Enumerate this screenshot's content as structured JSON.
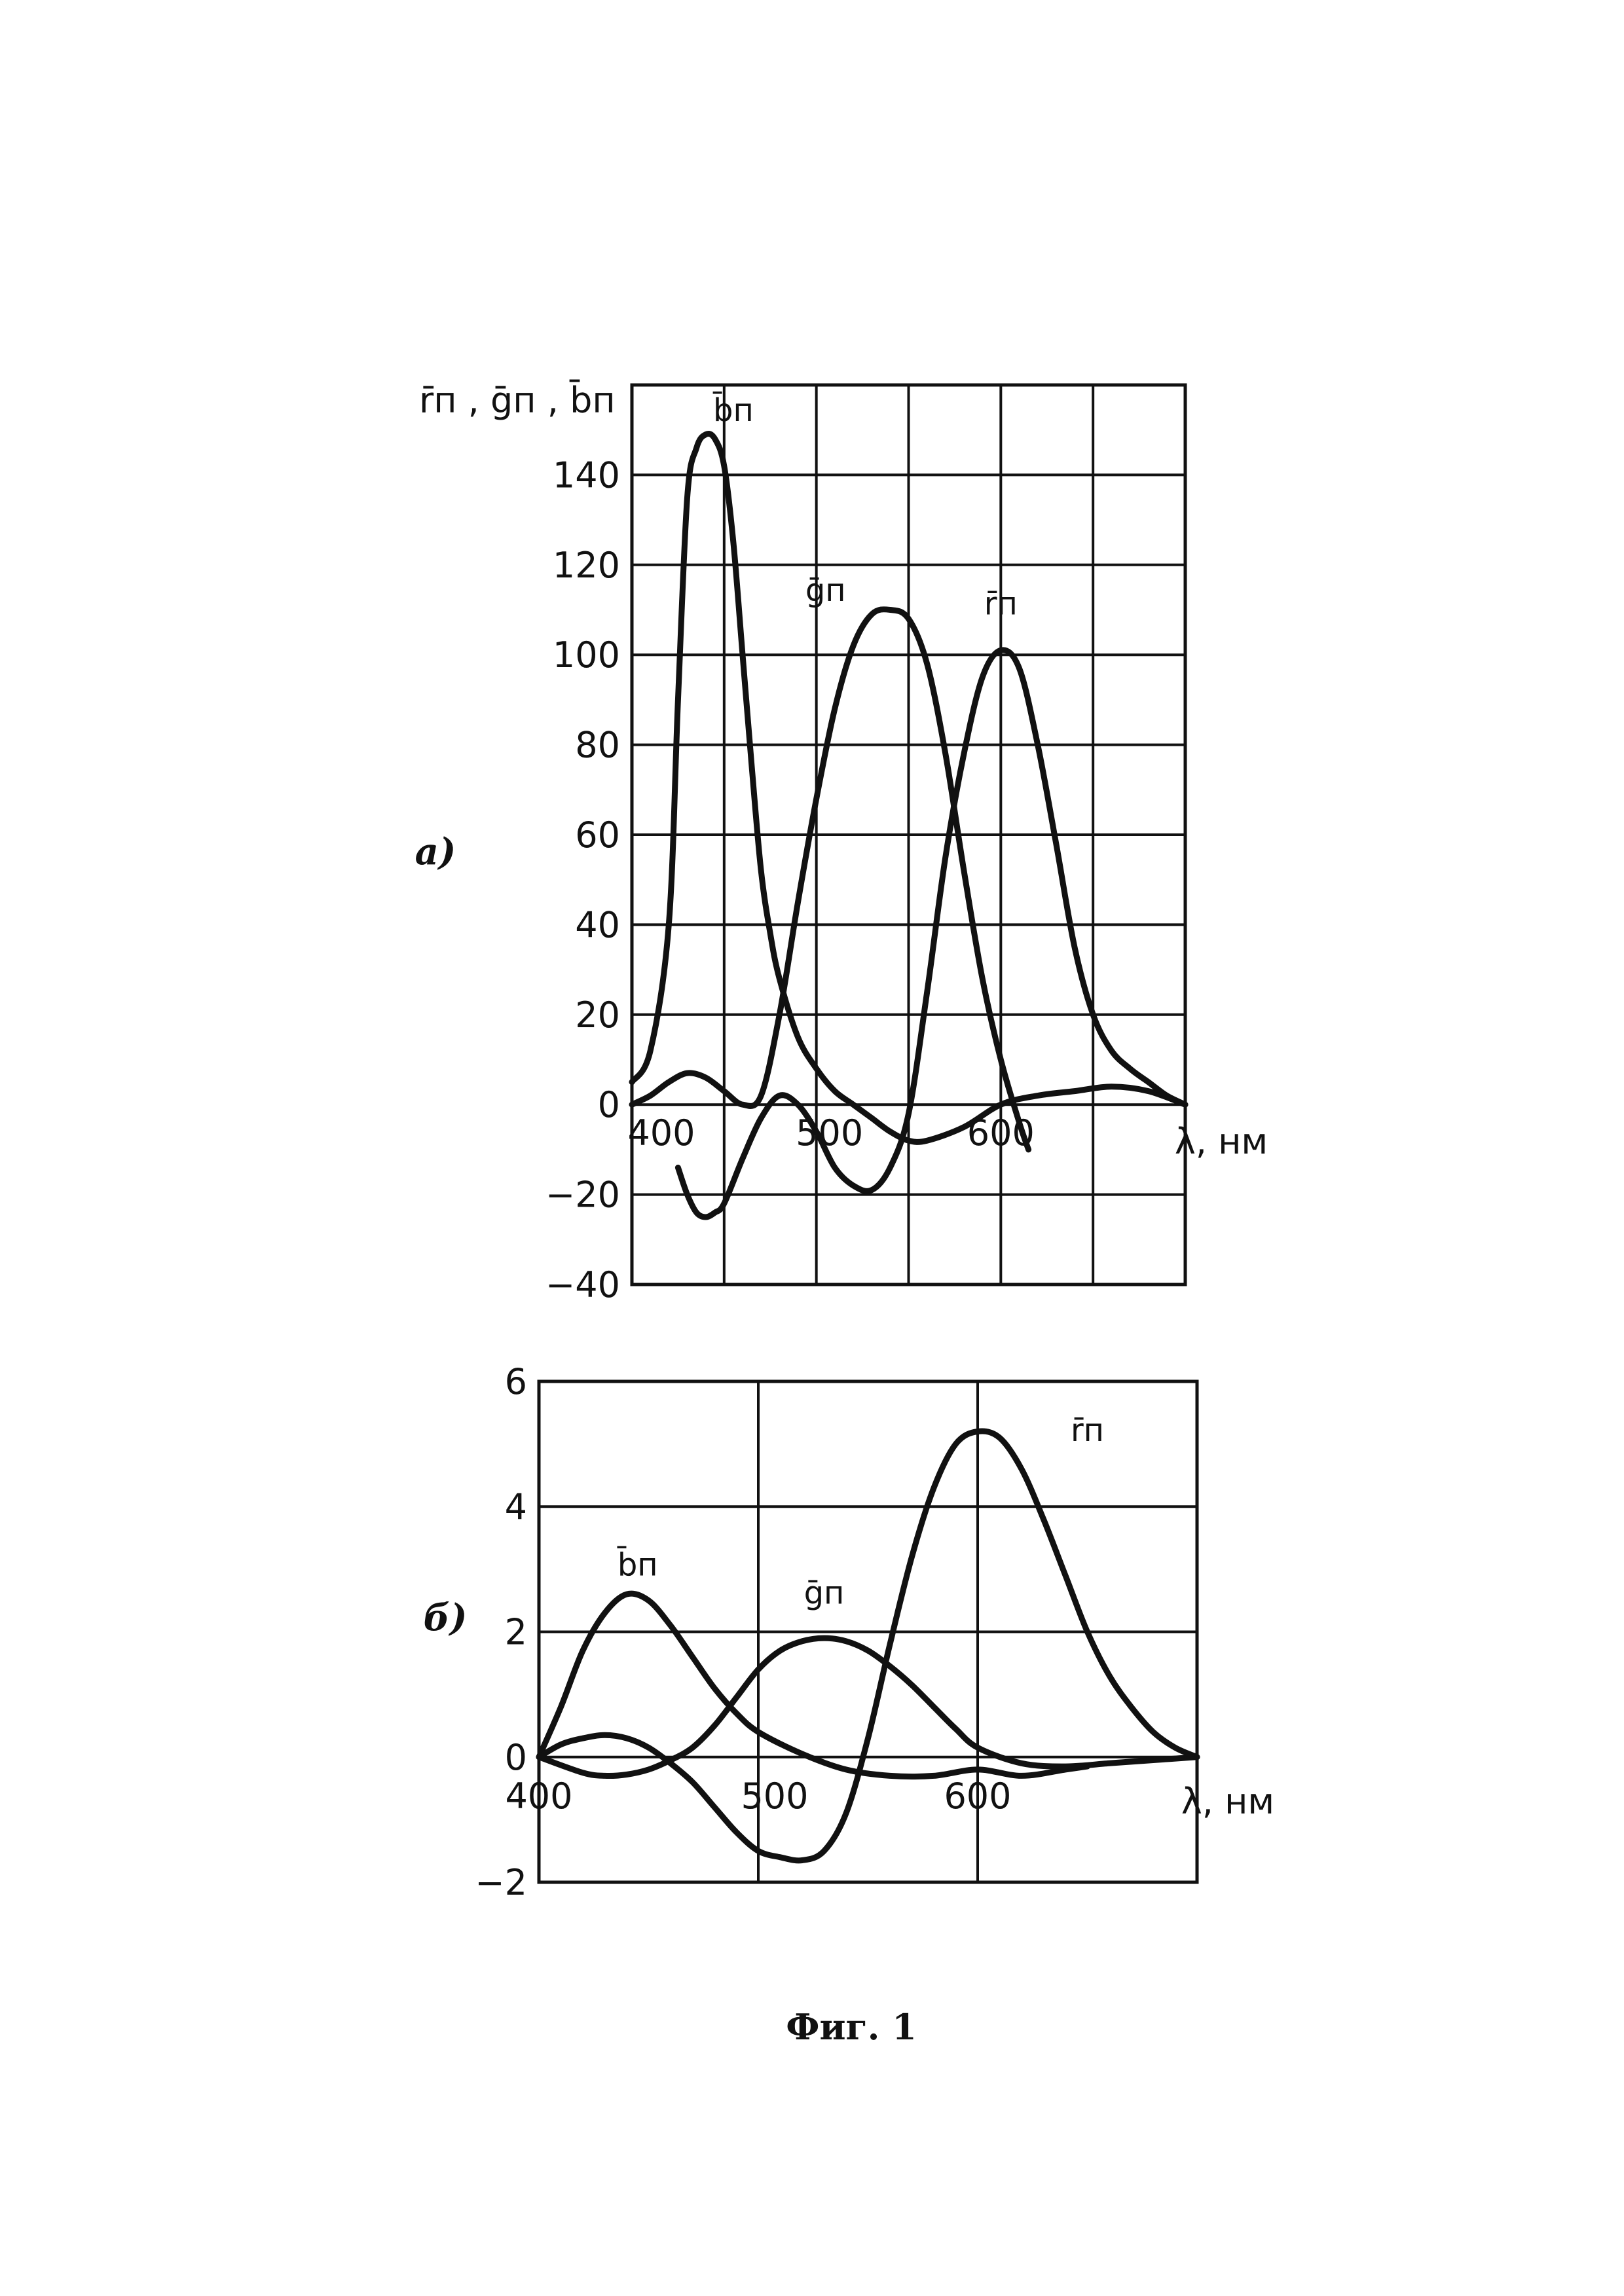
{
  "figure_caption": "Фиг. 1",
  "chart_data": [
    {
      "type": "line",
      "panel_label": "а)",
      "ylabel": "r̄п , ḡп , b̄п",
      "xlabel": "λ, нм",
      "xlim": [
        400,
        700
      ],
      "ylim": [
        -40,
        160
      ],
      "x_ticks": [
        400,
        500,
        600
      ],
      "x_tick_labels": [
        "400",
        "500",
        "600"
      ],
      "x_grid": [
        400,
        450,
        500,
        550,
        600,
        650,
        700
      ],
      "y_ticks": [
        -40,
        -20,
        0,
        20,
        40,
        60,
        80,
        100,
        120,
        140
      ],
      "y_tick_labels": [
        "−40",
        "−20",
        "0",
        "20",
        "40",
        "60",
        "80",
        "100",
        "120",
        "140"
      ],
      "grid": true,
      "series": [
        {
          "name": "b̄п",
          "x": [
            400,
            410,
            420,
            425,
            430,
            435,
            440,
            445,
            450,
            455,
            460,
            465,
            470,
            475,
            480,
            490,
            500,
            510,
            520,
            530,
            540,
            550,
            560,
            580,
            600,
            620,
            640,
            660,
            680,
            700
          ],
          "y": [
            5,
            12,
            40,
            90,
            135,
            146,
            149,
            148,
            142,
            125,
            100,
            75,
            52,
            38,
            28,
            15,
            8,
            3,
            0,
            -3,
            -6,
            -8,
            -8,
            -5,
            0,
            2,
            3,
            4,
            3,
            0
          ]
        },
        {
          "name": "ḡп",
          "x": [
            400,
            410,
            420,
            430,
            440,
            450,
            460,
            470,
            480,
            490,
            500,
            510,
            520,
            530,
            540,
            550,
            560,
            570,
            580,
            590,
            600,
            610,
            615
          ],
          "y": [
            0,
            2,
            5,
            7,
            6,
            3,
            0,
            2,
            20,
            45,
            68,
            88,
            102,
            109,
            110,
            108,
            98,
            78,
            52,
            28,
            10,
            -4,
            -10
          ]
        },
        {
          "name": "r̄п",
          "x": [
            425,
            430,
            435,
            440,
            445,
            450,
            460,
            470,
            480,
            490,
            500,
            510,
            520,
            530,
            540,
            550,
            560,
            570,
            580,
            590,
            600,
            610,
            620,
            630,
            640,
            650,
            660,
            670,
            680,
            690,
            700
          ],
          "y": [
            -14,
            -20,
            -24,
            -25,
            -24,
            -22,
            -12,
            -3,
            2,
            0,
            -6,
            -14,
            -18,
            -19,
            -14,
            -2,
            25,
            55,
            78,
            95,
            101,
            97,
            80,
            58,
            35,
            20,
            12,
            8,
            5,
            2,
            0
          ]
        }
      ],
      "series_labels": [
        {
          "text": "b̄п",
          "x": 455,
          "y": 152
        },
        {
          "text": "ḡп",
          "x": 505,
          "y": 112
        },
        {
          "text": "r̄п",
          "x": 600,
          "y": 109
        }
      ]
    },
    {
      "type": "line",
      "panel_label": "б)",
      "xlabel": "λ, нм",
      "xlim": [
        400,
        700
      ],
      "ylim": [
        -2,
        6
      ],
      "x_ticks": [
        400,
        500,
        600
      ],
      "x_tick_labels": [
        "400",
        "500",
        "600"
      ],
      "x_grid": [
        400,
        500,
        600,
        700
      ],
      "y_ticks": [
        -2,
        0,
        2,
        4,
        6
      ],
      "y_tick_labels": [
        "−2",
        "0",
        "2",
        "4",
        "6"
      ],
      "grid": true,
      "series": [
        {
          "name": "b̄п",
          "x": [
            400,
            410,
            420,
            430,
            440,
            450,
            460,
            470,
            480,
            490,
            500,
            520,
            540,
            560,
            580,
            600,
            620,
            640,
            650
          ],
          "y": [
            0,
            0.8,
            1.7,
            2.3,
            2.6,
            2.5,
            2.1,
            1.6,
            1.1,
            0.7,
            0.4,
            0.05,
            -0.2,
            -0.3,
            -0.3,
            -0.2,
            -0.3,
            -0.2,
            -0.15
          ]
        },
        {
          "name": "ḡп",
          "x": [
            400,
            420,
            430,
            440,
            450,
            460,
            470,
            480,
            490,
            500,
            510,
            520,
            530,
            540,
            550,
            560,
            570,
            580,
            590,
            600,
            620,
            640,
            660,
            680,
            700
          ],
          "y": [
            0,
            -0.25,
            -0.3,
            -0.28,
            -0.2,
            -0.05,
            0.15,
            0.5,
            0.95,
            1.4,
            1.7,
            1.85,
            1.9,
            1.85,
            1.7,
            1.45,
            1.15,
            0.8,
            0.45,
            0.15,
            -0.1,
            -0.15,
            -0.1,
            -0.05,
            0
          ]
        },
        {
          "name": "r̄п",
          "x": [
            400,
            410,
            420,
            430,
            440,
            450,
            460,
            470,
            480,
            490,
            500,
            510,
            520,
            530,
            540,
            550,
            560,
            570,
            580,
            590,
            600,
            610,
            620,
            630,
            640,
            650,
            660,
            670,
            680,
            690,
            700
          ],
          "y": [
            0,
            0.2,
            0.3,
            0.35,
            0.3,
            0.15,
            -0.1,
            -0.4,
            -0.8,
            -1.2,
            -1.5,
            -1.6,
            -1.65,
            -1.5,
            -0.9,
            0.3,
            1.8,
            3.2,
            4.3,
            5.0,
            5.2,
            5.1,
            4.6,
            3.8,
            2.9,
            2.0,
            1.3,
            0.8,
            0.4,
            0.15,
            0
          ]
        }
      ],
      "series_labels": [
        {
          "text": "b̄п",
          "x": 445,
          "y": 2.9
        },
        {
          "text": "ḡп",
          "x": 530,
          "y": 2.45
        },
        {
          "text": "r̄п",
          "x": 650,
          "y": 5.05
        }
      ]
    }
  ]
}
